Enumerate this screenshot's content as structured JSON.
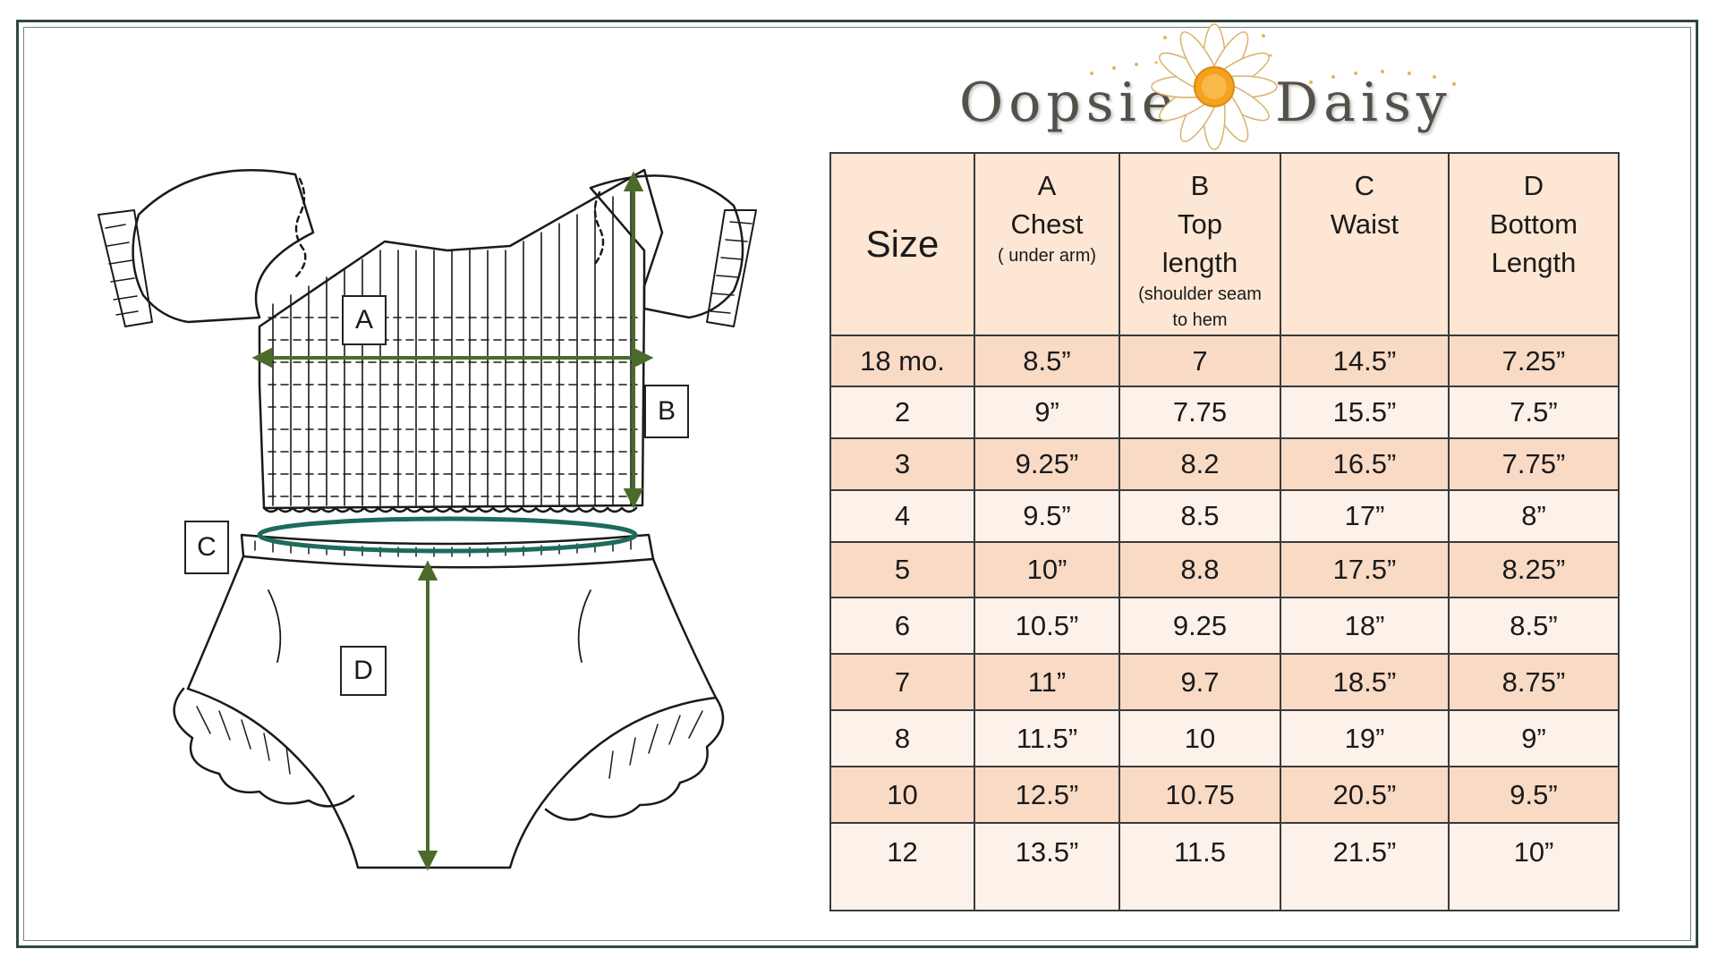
{
  "brand": {
    "word1": "Oopsie",
    "word2": "Daisy"
  },
  "colors": {
    "frame": "#2e4a3a",
    "header_bg": "#fde6d3",
    "row_dark": "#f9dac5",
    "row_light": "#fdf2ea",
    "arrow_green": "#4a6b2a",
    "waist_ring": "#1e6b5c"
  },
  "diagram": {
    "labels": {
      "a": "A",
      "b": "B",
      "c": "C",
      "d": "D"
    }
  },
  "table": {
    "headers": {
      "size": "Size",
      "a": {
        "letter": "A",
        "name": "Chest",
        "note": "( under arm)"
      },
      "b": {
        "letter": "B",
        "name1": "Top",
        "name2": "length",
        "note1": "(shoulder seam",
        "note2": "to hem"
      },
      "c": {
        "letter": "C",
        "name": "Waist"
      },
      "d": {
        "letter": "D",
        "name1": "Bottom",
        "name2": "Length"
      }
    },
    "rows": [
      {
        "size": "18 mo.",
        "a": "8.5”",
        "b": "7",
        "c": "14.5”",
        "d": "7.25”"
      },
      {
        "size": "2",
        "a": "9”",
        "b": "7.75",
        "c": "15.5”",
        "d": "7.5”"
      },
      {
        "size": "3",
        "a": "9.25”",
        "b": "8.2",
        "c": "16.5”",
        "d": "7.75”"
      },
      {
        "size": "4",
        "a": "9.5”",
        "b": "8.5",
        "c": "17”",
        "d": "8”"
      },
      {
        "size": "5",
        "a": "10”",
        "b": "8.8",
        "c": "17.5”",
        "d": "8.25”"
      },
      {
        "size": "6",
        "a": "10.5”",
        "b": "9.25",
        "c": "18”",
        "d": "8.5”"
      },
      {
        "size": "7",
        "a": "11”",
        "b": "9.7",
        "c": "18.5”",
        "d": "8.75”"
      },
      {
        "size": "8",
        "a": "11.5”",
        "b": "10",
        "c": "19”",
        "d": "9”"
      },
      {
        "size": "10",
        "a": "12.5”",
        "b": "10.75",
        "c": "20.5”",
        "d": "9.5”"
      },
      {
        "size": "12",
        "a": "13.5”",
        "b": "11.5",
        "c": "21.5”",
        "d": "10”"
      }
    ]
  }
}
